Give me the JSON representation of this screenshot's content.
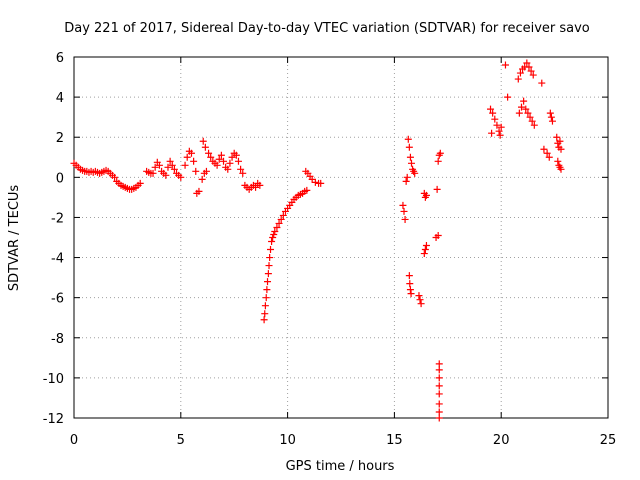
{
  "chart_data": {
    "type": "scatter",
    "title": "Day 221 of 2017, Sidereal Day-to-day VTEC variation (SDTVAR) for receiver savo",
    "xlabel": "GPS time / hours",
    "ylabel": "SDTVAR / TECUs",
    "xlim": [
      0,
      25
    ],
    "ylim": [
      -12,
      6
    ],
    "xticks": [
      0,
      5,
      10,
      15,
      20,
      25
    ],
    "yticks": [
      -12,
      -10,
      -8,
      -6,
      -4,
      -2,
      0,
      2,
      4,
      6
    ],
    "xtick_labels": [
      "0",
      "5",
      "10",
      "15",
      "20",
      "25"
    ],
    "ytick_labels": [
      "-12",
      "-10",
      "-8",
      "-6",
      "-4",
      "-2",
      "0",
      "2",
      "4",
      "6"
    ],
    "grid": true,
    "marker": "+",
    "color": "#ff0000",
    "series": [
      {
        "name": "SDTVAR",
        "points": [
          [
            0.0,
            0.7
          ],
          [
            0.1,
            0.6
          ],
          [
            0.2,
            0.5
          ],
          [
            0.3,
            0.4
          ],
          [
            0.4,
            0.35
          ],
          [
            0.5,
            0.3
          ],
          [
            0.6,
            0.3
          ],
          [
            0.7,
            0.25
          ],
          [
            0.8,
            0.3
          ],
          [
            0.9,
            0.25
          ],
          [
            1.0,
            0.3
          ],
          [
            1.1,
            0.25
          ],
          [
            1.2,
            0.2
          ],
          [
            1.3,
            0.25
          ],
          [
            1.4,
            0.3
          ],
          [
            1.5,
            0.35
          ],
          [
            1.6,
            0.3
          ],
          [
            1.7,
            0.2
          ],
          [
            1.8,
            0.1
          ],
          [
            1.9,
            0.0
          ],
          [
            2.0,
            -0.2
          ],
          [
            2.1,
            -0.3
          ],
          [
            2.2,
            -0.4
          ],
          [
            2.3,
            -0.45
          ],
          [
            2.4,
            -0.5
          ],
          [
            2.5,
            -0.55
          ],
          [
            2.6,
            -0.6
          ],
          [
            2.7,
            -0.6
          ],
          [
            2.8,
            -0.55
          ],
          [
            2.9,
            -0.5
          ],
          [
            3.0,
            -0.4
          ],
          [
            3.1,
            -0.3
          ],
          [
            3.4,
            0.3
          ],
          [
            3.5,
            0.25
          ],
          [
            3.6,
            0.2
          ],
          [
            3.7,
            0.2
          ],
          [
            3.8,
            0.5
          ],
          [
            3.9,
            0.75
          ],
          [
            4.0,
            0.6
          ],
          [
            4.1,
            0.3
          ],
          [
            4.2,
            0.2
          ],
          [
            4.3,
            0.1
          ],
          [
            4.4,
            0.5
          ],
          [
            4.5,
            0.8
          ],
          [
            4.6,
            0.6
          ],
          [
            4.7,
            0.4
          ],
          [
            4.8,
            0.2
          ],
          [
            4.9,
            0.1
          ],
          [
            5.0,
            0.0
          ],
          [
            5.2,
            0.6
          ],
          [
            5.3,
            1.0
          ],
          [
            5.4,
            1.3
          ],
          [
            5.5,
            1.2
          ],
          [
            5.6,
            0.8
          ],
          [
            5.7,
            0.3
          ],
          [
            5.75,
            -0.8
          ],
          [
            5.85,
            -0.7
          ],
          [
            6.0,
            -0.1
          ],
          [
            6.1,
            0.2
          ],
          [
            6.2,
            0.3
          ],
          [
            6.05,
            1.8
          ],
          [
            6.15,
            1.5
          ],
          [
            6.3,
            1.2
          ],
          [
            6.4,
            1.0
          ],
          [
            6.5,
            0.8
          ],
          [
            6.6,
            0.7
          ],
          [
            6.7,
            0.6
          ],
          [
            6.8,
            0.9
          ],
          [
            6.9,
            1.1
          ],
          [
            7.0,
            0.8
          ],
          [
            7.1,
            0.5
          ],
          [
            7.2,
            0.4
          ],
          [
            7.3,
            0.7
          ],
          [
            7.4,
            1.0
          ],
          [
            7.5,
            1.2
          ],
          [
            7.6,
            1.1
          ],
          [
            7.7,
            0.8
          ],
          [
            7.8,
            0.4
          ],
          [
            7.9,
            0.2
          ],
          [
            8.0,
            -0.4
          ],
          [
            8.1,
            -0.5
          ],
          [
            8.2,
            -0.6
          ],
          [
            8.3,
            -0.5
          ],
          [
            8.4,
            -0.4
          ],
          [
            8.5,
            -0.5
          ],
          [
            8.6,
            -0.3
          ],
          [
            8.7,
            -0.4
          ],
          [
            8.9,
            -7.1
          ],
          [
            8.93,
            -6.8
          ],
          [
            8.96,
            -6.4
          ],
          [
            9.0,
            -6.0
          ],
          [
            9.03,
            -5.6
          ],
          [
            9.06,
            -5.2
          ],
          [
            9.1,
            -4.8
          ],
          [
            9.13,
            -4.4
          ],
          [
            9.16,
            -4.0
          ],
          [
            9.2,
            -3.6
          ],
          [
            9.25,
            -3.2
          ],
          [
            9.3,
            -3.0
          ],
          [
            9.35,
            -2.85
          ],
          [
            9.4,
            -2.7
          ],
          [
            9.5,
            -2.5
          ],
          [
            9.6,
            -2.3
          ],
          [
            9.7,
            -2.1
          ],
          [
            9.8,
            -1.9
          ],
          [
            9.9,
            -1.7
          ],
          [
            10.0,
            -1.55
          ],
          [
            10.1,
            -1.4
          ],
          [
            10.2,
            -1.25
          ],
          [
            10.3,
            -1.1
          ],
          [
            10.4,
            -1.0
          ],
          [
            10.5,
            -0.9
          ],
          [
            10.6,
            -0.85
          ],
          [
            10.7,
            -0.8
          ],
          [
            10.8,
            -0.7
          ],
          [
            10.9,
            -0.65
          ],
          [
            10.85,
            0.3
          ],
          [
            10.95,
            0.2
          ],
          [
            11.05,
            0.05
          ],
          [
            11.15,
            -0.1
          ],
          [
            11.3,
            -0.25
          ],
          [
            11.45,
            -0.3
          ],
          [
            11.55,
            -0.3
          ],
          [
            15.4,
            -1.4
          ],
          [
            15.45,
            -1.7
          ],
          [
            15.5,
            -2.1
          ],
          [
            15.55,
            -0.2
          ],
          [
            15.6,
            0.0
          ],
          [
            15.65,
            1.9
          ],
          [
            15.7,
            1.5
          ],
          [
            15.75,
            1.0
          ],
          [
            15.8,
            0.7
          ],
          [
            15.85,
            0.4
          ],
          [
            15.9,
            0.3
          ],
          [
            15.95,
            0.2
          ],
          [
            15.7,
            -4.9
          ],
          [
            15.72,
            -5.3
          ],
          [
            15.75,
            -5.6
          ],
          [
            15.78,
            -5.8
          ],
          [
            16.15,
            -5.9
          ],
          [
            16.2,
            -6.1
          ],
          [
            16.25,
            -6.3
          ],
          [
            16.4,
            -0.8
          ],
          [
            16.5,
            -0.9
          ],
          [
            16.45,
            -1.0
          ],
          [
            16.4,
            -3.8
          ],
          [
            16.45,
            -3.6
          ],
          [
            16.5,
            -3.4
          ],
          [
            16.95,
            -3.0
          ],
          [
            17.05,
            -2.9
          ],
          [
            17.0,
            -0.6
          ],
          [
            17.05,
            0.8
          ],
          [
            17.1,
            1.1
          ],
          [
            17.15,
            1.2
          ],
          [
            17.1,
            -9.3
          ],
          [
            17.1,
            -9.6
          ],
          [
            17.1,
            -10.0
          ],
          [
            17.1,
            -10.4
          ],
          [
            17.1,
            -10.8
          ],
          [
            17.1,
            -11.3
          ],
          [
            17.1,
            -11.7
          ],
          [
            17.1,
            -12.0
          ],
          [
            19.5,
            3.4
          ],
          [
            19.6,
            3.2
          ],
          [
            19.7,
            2.9
          ],
          [
            19.8,
            2.6
          ],
          [
            19.9,
            2.3
          ],
          [
            19.95,
            2.1
          ],
          [
            20.0,
            2.5
          ],
          [
            19.55,
            2.2
          ],
          [
            20.2,
            5.6
          ],
          [
            20.3,
            4.0
          ],
          [
            20.8,
            4.9
          ],
          [
            20.9,
            5.2
          ],
          [
            21.0,
            5.4
          ],
          [
            21.1,
            5.5
          ],
          [
            21.2,
            5.7
          ],
          [
            21.3,
            5.5
          ],
          [
            21.4,
            5.3
          ],
          [
            21.5,
            5.1
          ],
          [
            20.85,
            3.2
          ],
          [
            20.95,
            3.5
          ],
          [
            21.05,
            3.8
          ],
          [
            21.15,
            3.4
          ],
          [
            21.25,
            3.2
          ],
          [
            21.35,
            3.0
          ],
          [
            21.45,
            2.8
          ],
          [
            21.55,
            2.6
          ],
          [
            21.9,
            4.7
          ],
          [
            22.0,
            1.4
          ],
          [
            22.15,
            1.2
          ],
          [
            22.25,
            1.0
          ],
          [
            22.3,
            3.2
          ],
          [
            22.35,
            3.0
          ],
          [
            22.4,
            2.8
          ],
          [
            22.6,
            2.0
          ],
          [
            22.65,
            1.7
          ],
          [
            22.7,
            1.5
          ],
          [
            22.75,
            1.8
          ],
          [
            22.8,
            1.4
          ],
          [
            22.65,
            0.8
          ],
          [
            22.7,
            0.6
          ],
          [
            22.75,
            0.5
          ],
          [
            22.8,
            0.4
          ]
        ]
      }
    ]
  }
}
